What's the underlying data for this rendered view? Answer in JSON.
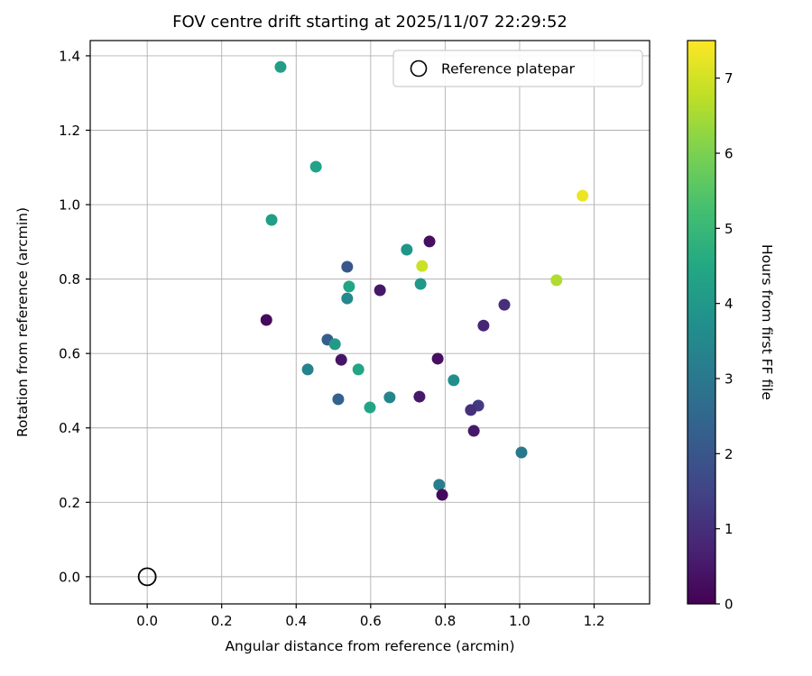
{
  "figure": {
    "background": "#ffffff"
  },
  "chart_data": {
    "type": "scatter",
    "title": "FOV centre drift starting at 2025/11/07 22:29:52",
    "xlabel": "Angular distance from reference (arcmin)",
    "ylabel": "Rotation from reference (arcmin)",
    "xlim": [
      -0.153,
      1.349
    ],
    "ylim": [
      -0.073,
      1.441
    ],
    "xticks": [
      0.0,
      0.2,
      0.4,
      0.6,
      0.8,
      1.0,
      1.2
    ],
    "yticks": [
      0.0,
      0.2,
      0.4,
      0.6,
      0.8,
      1.0,
      1.2,
      1.4
    ],
    "grid": true,
    "legend": {
      "label": "Reference platepar",
      "position": "upper right"
    },
    "colorbar": {
      "label": "Hours from first FF file",
      "vmin": 0,
      "vmax": 7.5,
      "ticks": [
        0,
        1,
        2,
        3,
        4,
        5,
        6,
        7
      ],
      "colormap": "viridis"
    },
    "reference_point": {
      "x": 0.0,
      "y": 0.0
    },
    "points": [
      {
        "x": 0.358,
        "y": 1.37,
        "hours": 4.2
      },
      {
        "x": 0.453,
        "y": 1.102,
        "hours": 4.3
      },
      {
        "x": 0.334,
        "y": 0.959,
        "hours": 4.2
      },
      {
        "x": 1.169,
        "y": 1.024,
        "hours": 7.3
      },
      {
        "x": 0.758,
        "y": 0.901,
        "hours": 0.3
      },
      {
        "x": 0.697,
        "y": 0.879,
        "hours": 3.9
      },
      {
        "x": 0.738,
        "y": 0.835,
        "hours": 6.9
      },
      {
        "x": 1.099,
        "y": 0.797,
        "hours": 6.6
      },
      {
        "x": 0.537,
        "y": 0.833,
        "hours": 2.0
      },
      {
        "x": 0.542,
        "y": 0.78,
        "hours": 4.4
      },
      {
        "x": 0.537,
        "y": 0.748,
        "hours": 3.5
      },
      {
        "x": 0.625,
        "y": 0.77,
        "hours": 0.5
      },
      {
        "x": 0.734,
        "y": 0.787,
        "hours": 4.0
      },
      {
        "x": 0.959,
        "y": 0.731,
        "hours": 1.0
      },
      {
        "x": 0.903,
        "y": 0.675,
        "hours": 0.8
      },
      {
        "x": 0.32,
        "y": 0.69,
        "hours": 0.2
      },
      {
        "x": 0.484,
        "y": 0.637,
        "hours": 2.2
      },
      {
        "x": 0.504,
        "y": 0.625,
        "hours": 4.1
      },
      {
        "x": 0.521,
        "y": 0.583,
        "hours": 0.4
      },
      {
        "x": 0.431,
        "y": 0.557,
        "hours": 3.3
      },
      {
        "x": 0.567,
        "y": 0.557,
        "hours": 4.4
      },
      {
        "x": 0.78,
        "y": 0.586,
        "hours": 0.3
      },
      {
        "x": 0.823,
        "y": 0.528,
        "hours": 3.7
      },
      {
        "x": 0.513,
        "y": 0.477,
        "hours": 2.3
      },
      {
        "x": 0.598,
        "y": 0.455,
        "hours": 4.4
      },
      {
        "x": 0.651,
        "y": 0.482,
        "hours": 3.4
      },
      {
        "x": 0.731,
        "y": 0.484,
        "hours": 0.5
      },
      {
        "x": 0.889,
        "y": 0.46,
        "hours": 1.3
      },
      {
        "x": 0.869,
        "y": 0.448,
        "hours": 1.0
      },
      {
        "x": 0.877,
        "y": 0.392,
        "hours": 0.5
      },
      {
        "x": 1.005,
        "y": 0.334,
        "hours": 3.0
      },
      {
        "x": 0.784,
        "y": 0.247,
        "hours": 3.2
      },
      {
        "x": 0.792,
        "y": 0.22,
        "hours": 0.2
      }
    ]
  },
  "colors": {
    "grid": "#b0b0b0",
    "axis": "#000000",
    "text": "#000000",
    "legend_border": "#cccccc"
  }
}
